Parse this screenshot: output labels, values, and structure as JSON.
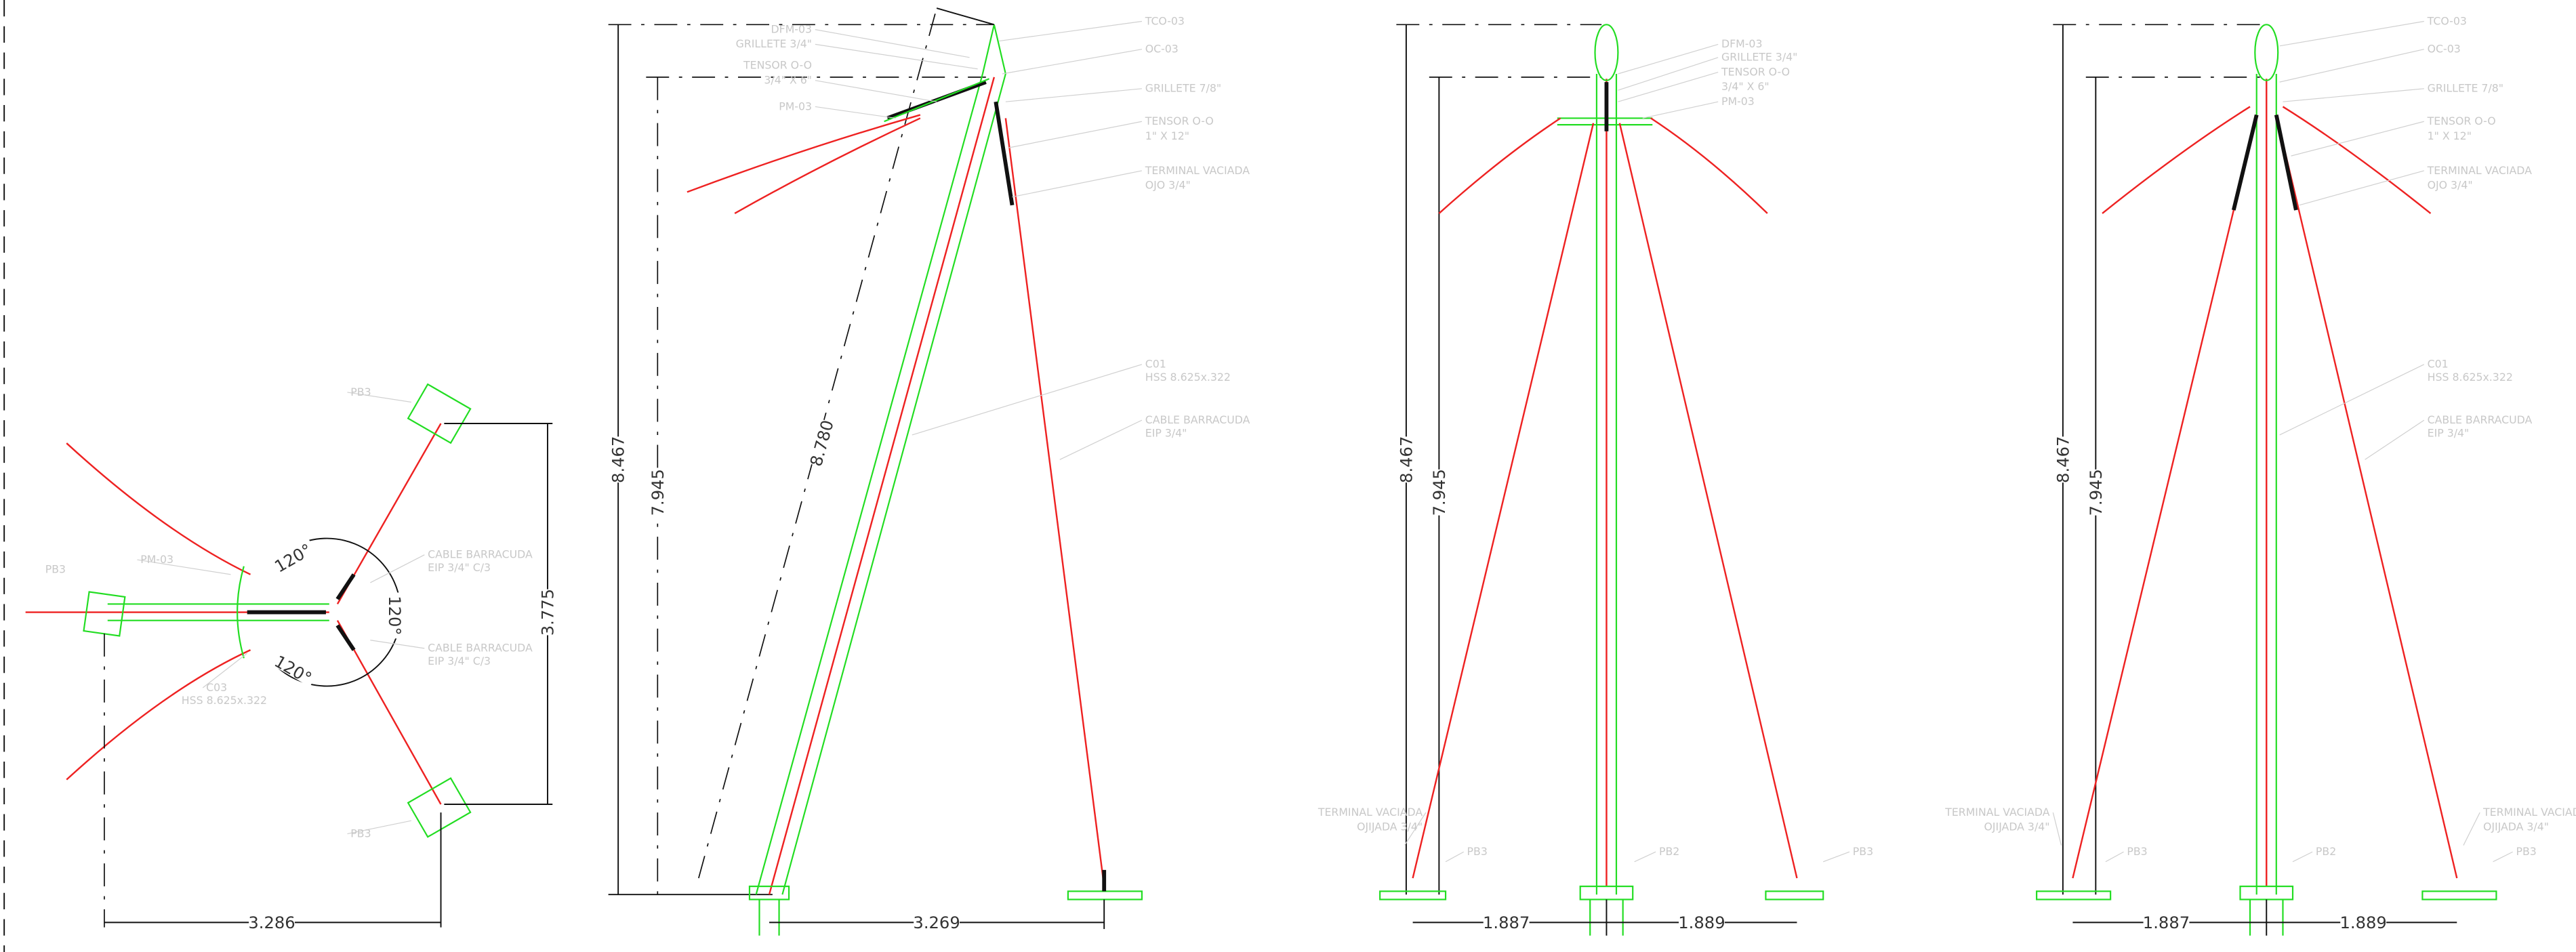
{
  "views": [
    {
      "labels": [
        "PB3",
        "PM-03",
        "C03",
        "HSS 8.625x.322",
        "CABLE BARRACUDA",
        "EIP 3/4\" C/3",
        "CABLE BARRACUDA",
        "EIP 3/4\" C/3",
        "PB3",
        "PB3"
      ],
      "dims": [
        "120°",
        "120°",
        "120°",
        "3.775",
        "3.286"
      ]
    },
    {
      "labels": [
        "DFM-03",
        "GRILLETE 3/4\"",
        "TENSOR O-O",
        "3/4\" X 6\"",
        "PM-03",
        "TCO-03",
        "OC-03",
        "GRILLETE 7/8\"",
        "TENSOR O-O",
        "1\" X 12\"",
        "TERMINAL VACIADA",
        "OJO 3/4\"",
        "C01",
        "HSS 8.625x.322",
        "CABLE BARRACUDA",
        "EIP 3/4\""
      ],
      "dims": [
        "8.467",
        "7.945",
        "8.780",
        "3.269"
      ]
    },
    {
      "labels": [
        "DFM-03",
        "GRILLETE 3/4\"",
        "TENSOR O-O",
        "3/4\" X 6\"",
        "PM-03",
        "TERMINAL VACIADA",
        "OJIJADA 3/4\"",
        "PB3",
        "PB2",
        "PB3"
      ],
      "dims": [
        "8.467",
        "7.945",
        "1.887",
        "1.889"
      ]
    },
    {
      "labels": [
        "TCO-03",
        "OC-03",
        "GRILLETE 7/8\"",
        "TENSOR O-O",
        "1\" X 12\"",
        "TERMINAL VACIADA",
        "OJO 3/4\"",
        "C01",
        "HSS 8.625x.322",
        "CABLE BARRACUDA",
        "EIP 3/4\"",
        "TERMINAL VACIADA",
        "OJIJADA 3/4\"",
        "TERMINAL VACIADA",
        "OJIJADA 3/4\"",
        "PB3",
        "PB2",
        "PB3"
      ],
      "dims": [
        "8.467",
        "7.945",
        "1.887",
        "1.889"
      ]
    }
  ]
}
